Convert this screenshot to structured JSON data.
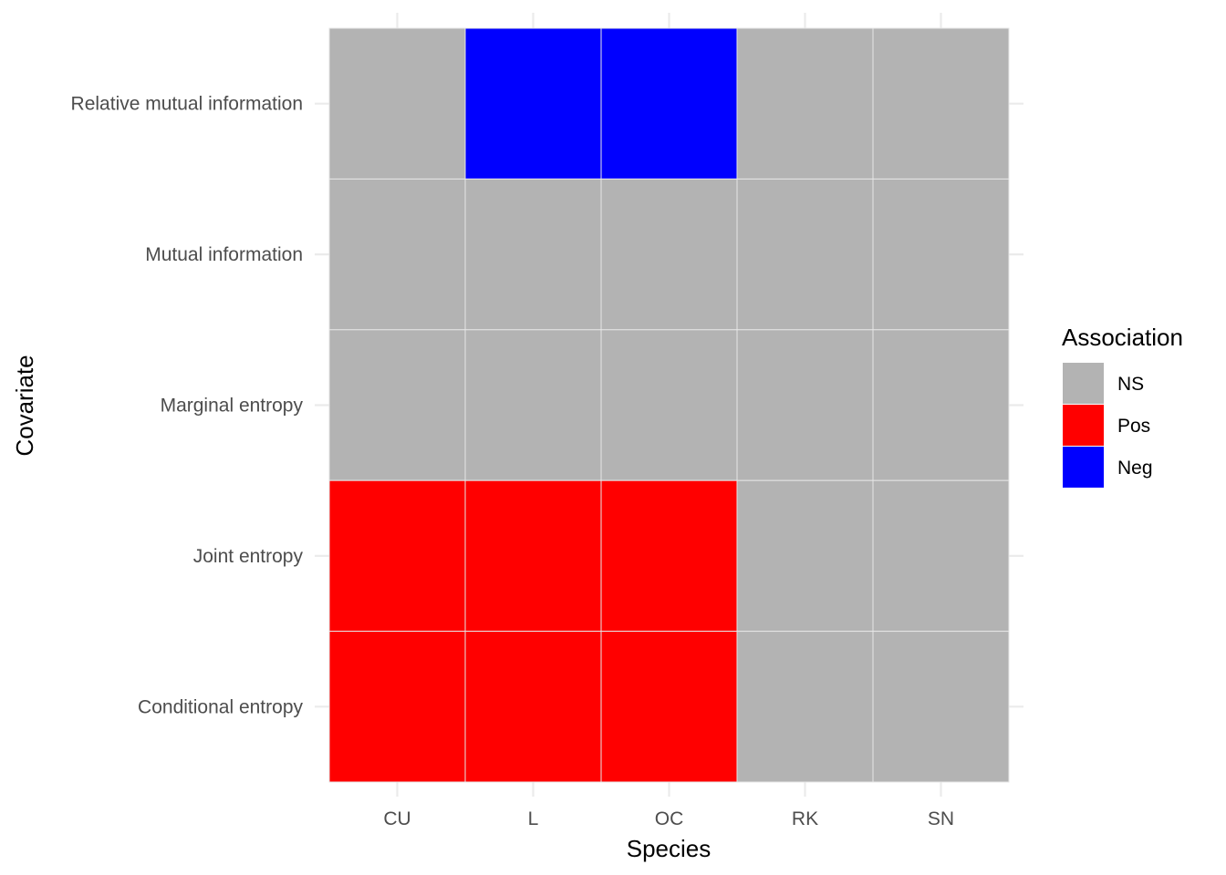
{
  "chart_data": {
    "type": "heatmap",
    "title": "",
    "xlabel": "Species",
    "ylabel": "Covariate",
    "x_categories": [
      "CU",
      "L",
      "OC",
      "RK",
      "SN"
    ],
    "y_categories": [
      "Relative mutual information",
      "Mutual information",
      "Marginal entropy",
      "Joint entropy",
      "Conditional entropy"
    ],
    "cells": [
      [
        "NS",
        "Neg",
        "Neg",
        "NS",
        "NS"
      ],
      [
        "NS",
        "NS",
        "NS",
        "NS",
        "NS"
      ],
      [
        "NS",
        "NS",
        "NS",
        "NS",
        "NS"
      ],
      [
        "Pos",
        "Pos",
        "Pos",
        "NS",
        "NS"
      ],
      [
        "Pos",
        "Pos",
        "Pos",
        "NS",
        "NS"
      ]
    ],
    "legend": {
      "title": "Association",
      "position": "right",
      "entries": [
        {
          "label": "NS",
          "color": "#b3b3b3"
        },
        {
          "label": "Pos",
          "color": "#ff0000"
        },
        {
          "label": "Neg",
          "color": "#0000ff"
        }
      ]
    },
    "grid": true
  }
}
